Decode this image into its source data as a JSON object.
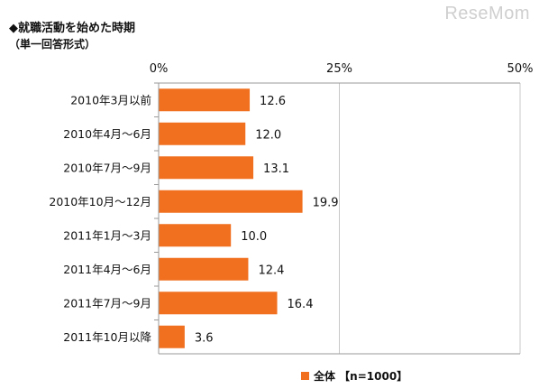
{
  "header": {
    "title": "◆就職活動を始めた時期",
    "subtitle": "（単一回答形式）",
    "watermark": "ReseMom"
  },
  "legend": {
    "label": "全体 【n=1000】"
  },
  "colors": {
    "bar": "#f07020",
    "axis": "#9a9a9a",
    "grid": "#c8c8c8"
  },
  "chart_data": {
    "type": "bar",
    "orientation": "horizontal",
    "title": "◆就職活動を始めた時期",
    "subtitle": "（単一回答形式）",
    "categories": [
      "2010年3月以前",
      "2010年4月～6月",
      "2010年7月～9月",
      "2010年10月～12月",
      "2011年1月～3月",
      "2011年4月～6月",
      "2011年7月～9月",
      "2011年10月以降"
    ],
    "series": [
      {
        "name": "全体 【n=1000】",
        "values": [
          12.6,
          12.0,
          13.1,
          19.9,
          10.0,
          12.4,
          16.4,
          3.6
        ]
      }
    ],
    "value_labels": [
      "12.6",
      "12.0",
      "13.1",
      "19.9",
      "10.0",
      "12.4",
      "16.4",
      "3.6"
    ],
    "xlim": [
      0,
      50
    ],
    "ticks": [
      "0%",
      "25%",
      "50%"
    ],
    "tick_values": [
      0,
      25,
      50
    ],
    "grid": true,
    "legend_position": "bottom-right"
  }
}
